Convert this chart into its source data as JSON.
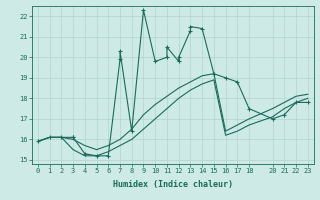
{
  "xlabel": "Humidex (Indice chaleur)",
  "bg_color": "#ceeae6",
  "grid_color": "#b0d4cf",
  "line_color": "#1a6b5a",
  "xlim": [
    -0.5,
    23.5
  ],
  "ylim": [
    14.8,
    22.5
  ],
  "xticks": [
    0,
    1,
    2,
    3,
    4,
    5,
    6,
    7,
    8,
    9,
    10,
    11,
    12,
    13,
    14,
    15,
    16,
    17,
    18,
    20,
    21,
    22,
    23
  ],
  "yticks": [
    15,
    16,
    17,
    18,
    19,
    20,
    21,
    22
  ],
  "curve1_x": [
    0,
    1,
    2,
    3,
    3,
    4,
    5,
    6,
    7,
    7,
    8,
    9,
    10,
    11,
    11,
    12,
    12,
    13,
    13,
    14,
    15,
    16,
    17,
    18,
    20,
    21,
    22,
    23
  ],
  "curve1_y": [
    15.9,
    16.1,
    16.1,
    16.1,
    16.1,
    15.3,
    15.2,
    15.2,
    19.9,
    20.3,
    16.4,
    22.3,
    19.8,
    20.0,
    20.5,
    19.8,
    20.0,
    21.3,
    21.5,
    21.4,
    19.2,
    19.0,
    18.8,
    17.5,
    17.0,
    17.2,
    17.8,
    17.8
  ],
  "curve2_x": [
    0,
    1,
    2,
    3,
    4,
    5,
    6,
    7,
    8,
    9,
    10,
    11,
    12,
    13,
    14,
    15,
    16,
    17,
    18,
    20,
    21,
    22,
    23
  ],
  "curve2_y": [
    15.9,
    16.1,
    16.1,
    15.5,
    15.2,
    15.2,
    15.4,
    15.7,
    16.0,
    16.5,
    17.0,
    17.5,
    18.0,
    18.4,
    18.7,
    18.9,
    16.2,
    16.4,
    16.7,
    17.1,
    17.5,
    17.8,
    18.0
  ],
  "curve3_x": [
    0,
    1,
    2,
    3,
    4,
    5,
    6,
    7,
    8,
    9,
    10,
    11,
    12,
    13,
    14,
    15,
    16,
    17,
    18,
    20,
    21,
    22,
    23
  ],
  "curve3_y": [
    15.9,
    16.1,
    16.1,
    16.0,
    15.7,
    15.5,
    15.7,
    16.0,
    16.5,
    17.2,
    17.7,
    18.1,
    18.5,
    18.8,
    19.1,
    19.2,
    16.4,
    16.7,
    17.0,
    17.5,
    17.8,
    18.1,
    18.2
  ]
}
